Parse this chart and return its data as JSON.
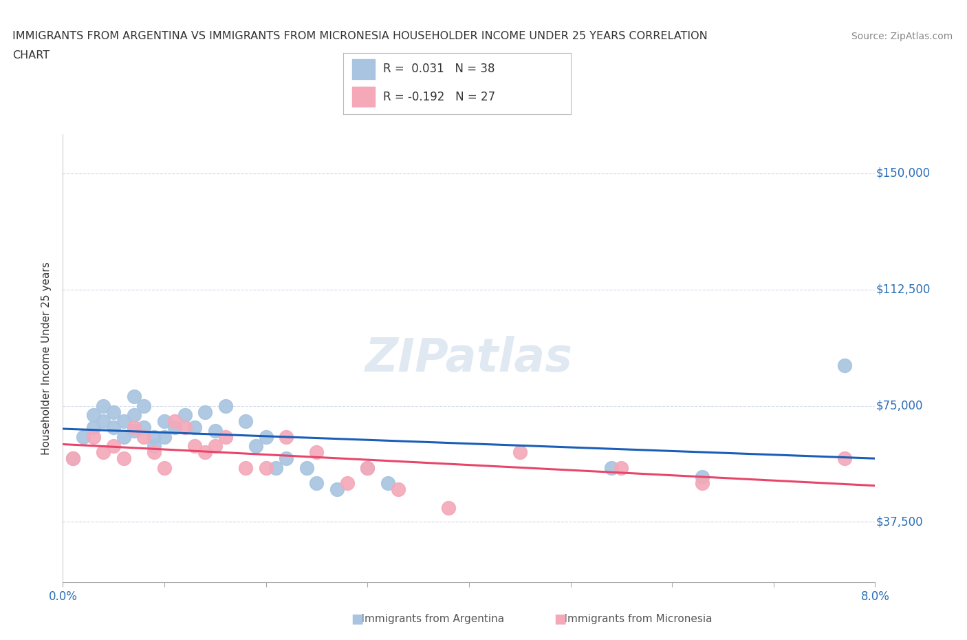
{
  "title_line1": "IMMIGRANTS FROM ARGENTINA VS IMMIGRANTS FROM MICRONESIA HOUSEHOLDER INCOME UNDER 25 YEARS CORRELATION",
  "title_line2": "CHART",
  "source_text": "Source: ZipAtlas.com",
  "ylabel": "Householder Income Under 25 years",
  "xlim": [
    0.0,
    0.08
  ],
  "ylim": [
    18000,
    162500
  ],
  "yticks": [
    37500,
    75000,
    112500,
    150000
  ],
  "ytick_labels": [
    "$37,500",
    "$75,000",
    "$112,500",
    "$150,000"
  ],
  "xticks": [
    0.0,
    0.01,
    0.02,
    0.03,
    0.04,
    0.05,
    0.06,
    0.07,
    0.08
  ],
  "xtick_labels": [
    "0.0%",
    "",
    "",
    "",
    "",
    "",
    "",
    "",
    "8.0%"
  ],
  "legend_r1": "R =  0.031   N = 38",
  "legend_r2": "R = -0.192   N = 27",
  "color_argentina": "#a8c4e0",
  "color_micronesia": "#f4a8b8",
  "line_color_argentina": "#1a5eb8",
  "line_color_micronesia": "#e8456a",
  "watermark": "ZIPatlas",
  "argentina_x": [
    0.001,
    0.002,
    0.003,
    0.003,
    0.004,
    0.004,
    0.005,
    0.005,
    0.006,
    0.006,
    0.007,
    0.007,
    0.007,
    0.008,
    0.008,
    0.009,
    0.009,
    0.01,
    0.01,
    0.011,
    0.012,
    0.013,
    0.014,
    0.015,
    0.016,
    0.018,
    0.019,
    0.02,
    0.021,
    0.022,
    0.024,
    0.025,
    0.027,
    0.03,
    0.032,
    0.054,
    0.063,
    0.077
  ],
  "argentina_y": [
    58000,
    65000,
    72000,
    68000,
    75000,
    70000,
    68000,
    73000,
    65000,
    70000,
    78000,
    72000,
    67000,
    68000,
    75000,
    65000,
    62000,
    70000,
    65000,
    68000,
    72000,
    68000,
    73000,
    67000,
    75000,
    70000,
    62000,
    65000,
    55000,
    58000,
    55000,
    50000,
    48000,
    55000,
    50000,
    55000,
    52000,
    88000
  ],
  "micronesia_x": [
    0.001,
    0.003,
    0.004,
    0.005,
    0.006,
    0.007,
    0.008,
    0.009,
    0.01,
    0.011,
    0.012,
    0.013,
    0.014,
    0.015,
    0.016,
    0.018,
    0.02,
    0.022,
    0.025,
    0.028,
    0.03,
    0.033,
    0.038,
    0.045,
    0.055,
    0.063,
    0.077
  ],
  "micronesia_y": [
    58000,
    65000,
    60000,
    62000,
    58000,
    68000,
    65000,
    60000,
    55000,
    70000,
    68000,
    62000,
    60000,
    62000,
    65000,
    55000,
    55000,
    65000,
    60000,
    50000,
    55000,
    48000,
    42000,
    60000,
    55000,
    50000,
    58000
  ],
  "bg_color": "#ffffff",
  "grid_color": "#d0d8e8"
}
